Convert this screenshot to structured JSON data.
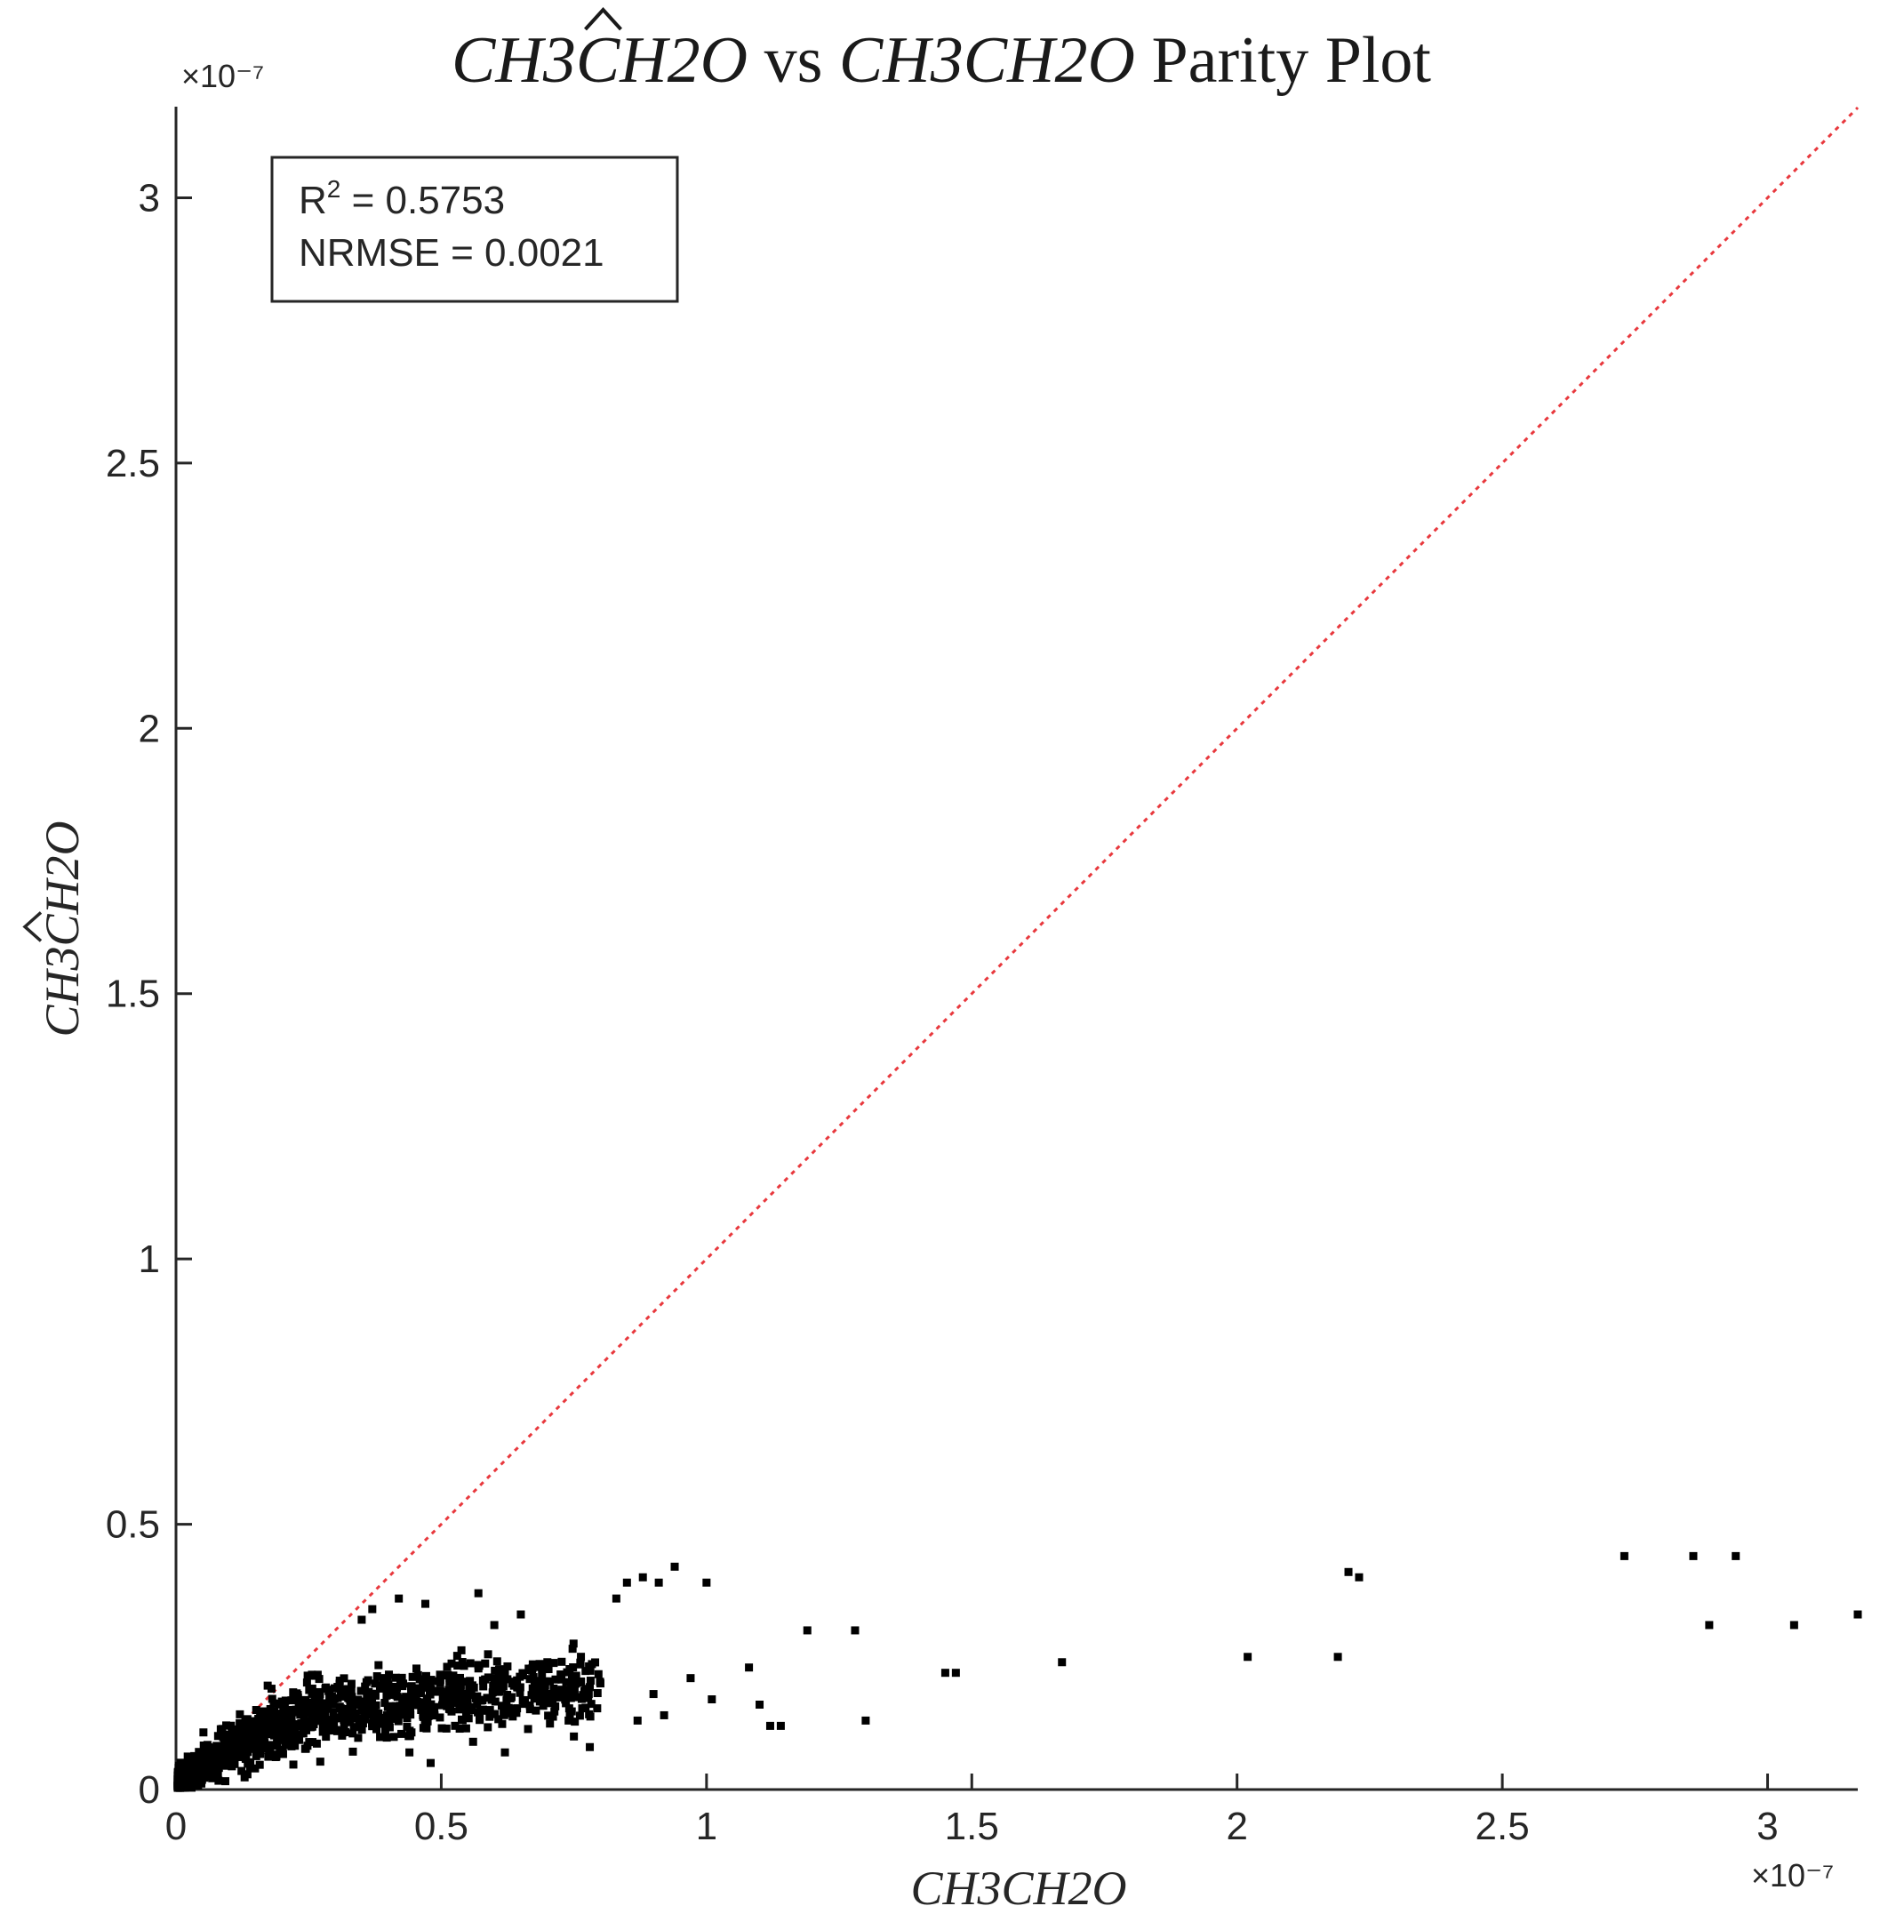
{
  "chart_data": {
    "type": "scatter",
    "title": {
      "part1": "CH3",
      "hat": "C",
      "part2": "H2O",
      "mid": " vs ",
      "part3": "CH3CH2O",
      "part4": " Parity Plot"
    },
    "xlabel": "CH3CH2O",
    "ylabel": {
      "part1": "CH3",
      "hat": "C",
      "part2": "H2O"
    },
    "x_exponent": "×10⁻⁷",
    "y_exponent": "×10⁻⁷",
    "xlim": [
      0,
      3.17
    ],
    "ylim": [
      0,
      3.17
    ],
    "x_ticks": [
      "0",
      "0.5",
      "1",
      "1.5",
      "2",
      "2.5",
      "3"
    ],
    "y_ticks": [
      "0",
      "0.5",
      "1",
      "1.5",
      "2",
      "2.5",
      "3"
    ],
    "annotation": {
      "r2_label": "R",
      "r2_sup": "2",
      "r2_value": " = 0.5753",
      "nrmse": "NRMSE = 0.0021"
    },
    "reference_line": {
      "from": [
        0,
        0
      ],
      "to": [
        3.17,
        3.17
      ],
      "color": "#e8383d",
      "style": "dotted"
    },
    "marker_color": "#000000",
    "outlier_points": [
      [
        0.35,
        0.32
      ],
      [
        0.37,
        0.34
      ],
      [
        0.42,
        0.36
      ],
      [
        0.47,
        0.35
      ],
      [
        0.57,
        0.37
      ],
      [
        0.6,
        0.31
      ],
      [
        0.65,
        0.33
      ],
      [
        0.83,
        0.36
      ],
      [
        0.85,
        0.39
      ],
      [
        0.88,
        0.4
      ],
      [
        0.91,
        0.39
      ],
      [
        0.94,
        0.42
      ],
      [
        1.0,
        0.39
      ],
      [
        0.9,
        0.18
      ],
      [
        0.92,
        0.14
      ],
      [
        0.97,
        0.21
      ],
      [
        1.01,
        0.17
      ],
      [
        1.08,
        0.23
      ],
      [
        1.1,
        0.16
      ],
      [
        1.12,
        0.12
      ],
      [
        1.14,
        0.12
      ],
      [
        1.19,
        0.3
      ],
      [
        1.28,
        0.3
      ],
      [
        1.3,
        0.13
      ],
      [
        1.45,
        0.22
      ],
      [
        1.47,
        0.22
      ],
      [
        1.67,
        0.24
      ],
      [
        2.02,
        0.25
      ],
      [
        2.19,
        0.25
      ],
      [
        2.21,
        0.41
      ],
      [
        2.23,
        0.4
      ],
      [
        2.73,
        0.44
      ],
      [
        2.86,
        0.44
      ],
      [
        2.89,
        0.31
      ],
      [
        2.94,
        0.44
      ],
      [
        3.05,
        0.31
      ],
      [
        3.17,
        0.33
      ],
      [
        0.62,
        0.22
      ],
      [
        0.7,
        0.24
      ],
      [
        0.75,
        0.1
      ],
      [
        0.78,
        0.08
      ],
      [
        0.74,
        0.13
      ],
      [
        0.56,
        0.09
      ],
      [
        0.62,
        0.07
      ],
      [
        0.48,
        0.05
      ],
      [
        0.44,
        0.07
      ],
      [
        0.87,
        0.13
      ],
      [
        0.8,
        0.2
      ]
    ],
    "cluster": {
      "description_free": true,
      "count": 1400,
      "x_range": [
        0,
        0.8
      ],
      "slope_low": 0.85,
      "saturation": 0.2
    },
    "grid": false
  }
}
